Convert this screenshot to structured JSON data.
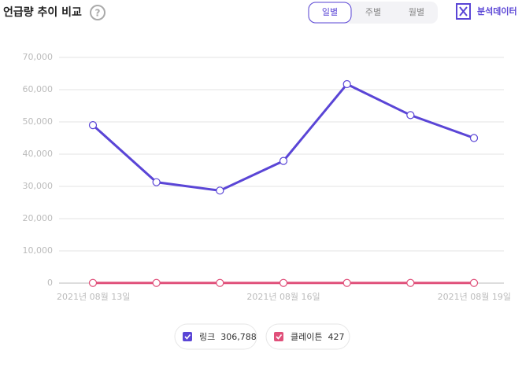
{
  "header": {
    "title": "언급량 추이 비교",
    "help": "?",
    "tabs": [
      "일별",
      "주별",
      "월별"
    ],
    "active_tab": 0,
    "export": "분석데이터"
  },
  "chart_data": {
    "type": "line",
    "categories": [
      "2021년 08월 13일",
      null,
      null,
      "2021년 08월 16일",
      null,
      null,
      "2021년 08월 19일"
    ],
    "series": [
      {
        "name": "링크",
        "color": "#5a45d6",
        "values": [
          49000,
          31300,
          28700,
          37900,
          61700,
          52100,
          45000
        ],
        "total": "306,788"
      },
      {
        "name": "클레이튼",
        "color": "#e0507a",
        "values": [
          61,
          61,
          61,
          61,
          61,
          61,
          61
        ],
        "total": "427"
      }
    ],
    "ylim": [
      0,
      70000
    ],
    "yticks": [
      0,
      {
        "value": 10000,
        "label": "10,000"
      },
      {
        "value": 20000,
        "label": "20,000"
      },
      {
        "value": 30000,
        "label": "30,000"
      },
      {
        "value": 40000,
        "label": "40,000"
      },
      {
        "value": 50000,
        "label": "50,000"
      },
      {
        "value": 60000,
        "label": "60,000"
      },
      {
        "value": 70000,
        "label": "70,000"
      }
    ],
    "grid": true
  }
}
